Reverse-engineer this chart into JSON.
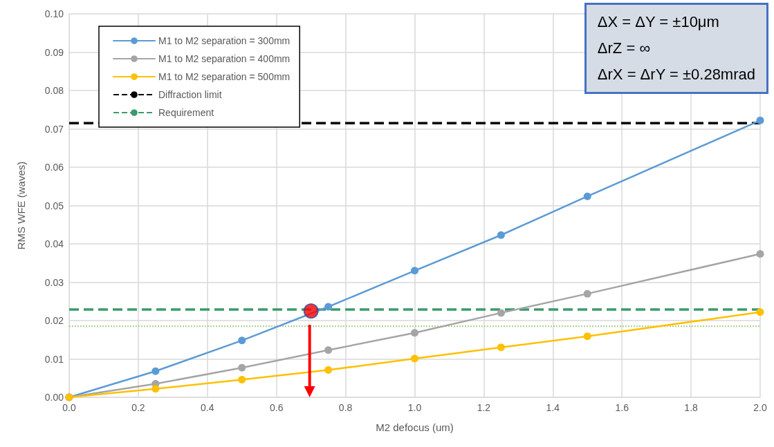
{
  "chart_data": {
    "type": "line",
    "xlabel": "M2 defocus (um)",
    "ylabel": "RMS WFE (waves)",
    "x": [
      0,
      0.25,
      0.5,
      0.75,
      1.0,
      1.25,
      1.5,
      2.0
    ],
    "series": [
      {
        "name": "M1 to M2 separation = 300mm",
        "color": "#5b9bd5",
        "values": [
          0,
          0.0068,
          0.0148,
          0.0236,
          0.033,
          0.0423,
          0.0524,
          0.0722
        ]
      },
      {
        "name": "M1 to M2 separation = 400mm",
        "color": "#a5a5a5",
        "values": [
          0,
          0.0035,
          0.0077,
          0.0123,
          0.0168,
          0.022,
          0.027,
          0.0374
        ]
      },
      {
        "name": "M1 to M2 separation = 500mm",
        "color": "#ffc000",
        "values": [
          0,
          0.0022,
          0.0046,
          0.0071,
          0.0101,
          0.013,
          0.0159,
          0.0222
        ]
      },
      {
        "type": "scatter",
        "color": "#ff0000",
        "x": [
          0.7
        ],
        "values": [
          0.0225
        ]
      }
    ],
    "ref_lines": [
      {
        "axis": "y",
        "value": 0.0715,
        "label": "Diffraction limit",
        "color": "#000000",
        "line_style": "dashed"
      },
      {
        "axis": "y",
        "value": 0.0229,
        "label": "Requirement",
        "color": "#3a9a6a",
        "line_style": "dashed"
      },
      {
        "axis": "y",
        "value": 0.0185,
        "color": "#a8d08d",
        "line_style": "dotted"
      }
    ],
    "annotations": [
      "ΔX = ΔY = ±10μm",
      "ΔrZ = ∞",
      "ΔrX = ΔrY = ±0.28mrad"
    ],
    "xlim": [
      0,
      2.0
    ],
    "xticks": [
      {
        "value": 0,
        "label": "0.0"
      },
      {
        "value": 0.2,
        "label": "0.2"
      },
      {
        "value": 0.4,
        "label": "0.4"
      },
      {
        "value": 0.6,
        "label": "0.6"
      },
      {
        "value": 0.8,
        "label": "0.8"
      },
      {
        "value": 1.0,
        "label": "1.0"
      },
      {
        "value": 1.2,
        "label": "1.2"
      },
      {
        "value": 1.4,
        "label": "1.4"
      },
      {
        "value": 1.6,
        "label": "1.6"
      },
      {
        "value": 1.8,
        "label": "1.8"
      },
      {
        "value": 2.0,
        "label": "2.0"
      }
    ],
    "ylim": [
      0,
      0.1
    ],
    "yticks": [
      {
        "value": 0,
        "label": "0.00"
      },
      {
        "value": 0.01,
        "label": "0.01"
      },
      {
        "value": 0.02,
        "label": "0.02"
      },
      {
        "value": 0.03,
        "label": "0.03"
      },
      {
        "value": 0.04,
        "label": "0.04"
      },
      {
        "value": 0.05,
        "label": "0.05"
      },
      {
        "value": 0.06,
        "label": "0.06"
      },
      {
        "value": 0.07,
        "label": "0.07"
      },
      {
        "value": 0.08,
        "label": "0.08"
      },
      {
        "value": 0.09,
        "label": "0.09"
      },
      {
        "value": 0.1,
        "label": "0.10"
      }
    ],
    "grid": true,
    "legend": "top left",
    "marker": "circle",
    "line_style": "solid"
  }
}
